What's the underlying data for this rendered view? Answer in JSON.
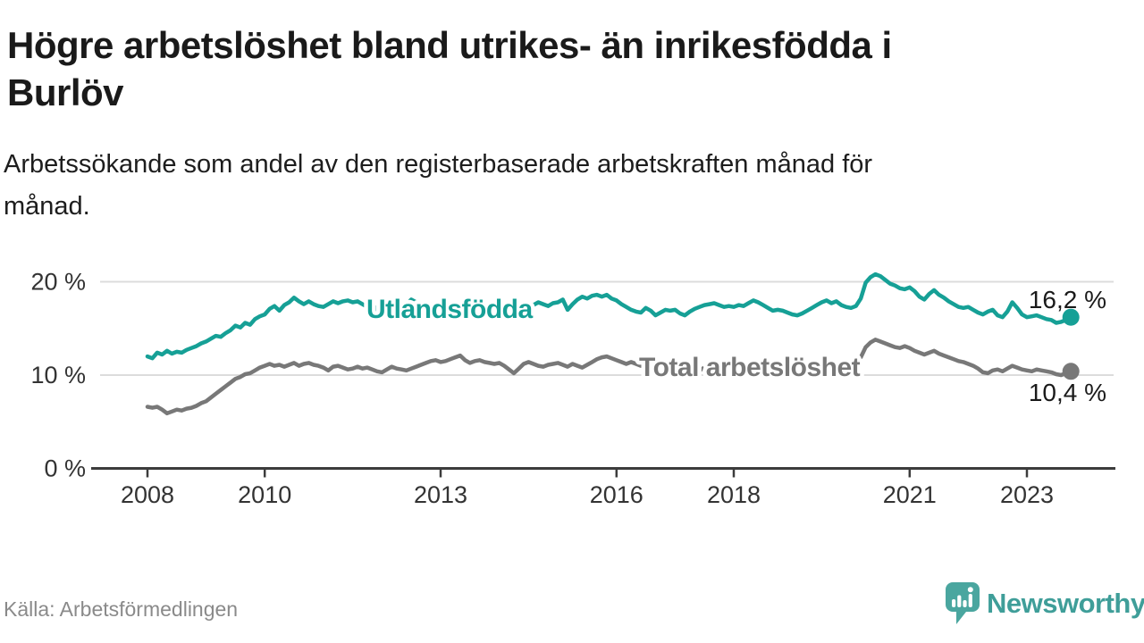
{
  "header": {
    "title_line1": "Högre arbetslöshet bland utrikes- än inrikesfödda i",
    "title_line2": "Burlöv",
    "subtitle_line1": "Arbetssökande som andel av den registerbaserade arbetskraften månad för",
    "subtitle_line2": "månad."
  },
  "footer": {
    "source": "Källa: Arbetsförmedlingen",
    "brand": "Newsworthy"
  },
  "colors": {
    "accent_teal": "#16a096",
    "series_gray": "#787878",
    "logo_teal": "#4aa69f",
    "grid": "#dcdcdc",
    "axis": "#3c3c3c",
    "text_dark": "#1a1a1a",
    "tick_text": "#333333"
  },
  "chart_data": {
    "type": "line",
    "unit": "%",
    "frequency": "monthly",
    "x_start": "2008-01",
    "x_end": "2023-10",
    "points_per_year": 12,
    "grid": "horizontal",
    "legend": "inline-labels",
    "ylim": [
      0,
      22
    ],
    "y_ticks": [
      {
        "value": 0,
        "label": "0 %"
      },
      {
        "value": 10,
        "label": "10 %"
      },
      {
        "value": 20,
        "label": "20 %"
      }
    ],
    "x_ticks": [
      {
        "year": 2008,
        "label": "2008"
      },
      {
        "year": 2010,
        "label": "2010"
      },
      {
        "year": 2013,
        "label": "2013"
      },
      {
        "year": 2016,
        "label": "2016"
      },
      {
        "year": 2018,
        "label": "2018"
      },
      {
        "year": 2021,
        "label": "2021"
      },
      {
        "year": 2023,
        "label": "2023"
      }
    ],
    "series": [
      {
        "name": "Utlandsfödda",
        "color": "#16a096",
        "end_value": 16.2,
        "end_label": "16,2 %",
        "values": [
          12.0,
          11.8,
          12.4,
          12.2,
          12.6,
          12.3,
          12.5,
          12.4,
          12.7,
          12.9,
          13.1,
          13.4,
          13.6,
          13.9,
          14.2,
          14.1,
          14.5,
          14.8,
          15.3,
          15.1,
          15.6,
          15.4,
          16.0,
          16.3,
          16.5,
          17.1,
          17.4,
          16.9,
          17.5,
          17.8,
          18.3,
          17.9,
          17.6,
          17.9,
          17.6,
          17.4,
          17.3,
          17.6,
          17.9,
          17.7,
          17.9,
          18.0,
          17.8,
          17.9,
          17.6,
          17.3,
          17.6,
          17.0,
          16.6,
          16.9,
          17.3,
          17.0,
          17.4,
          17.6,
          18.1,
          17.8,
          17.5,
          17.2,
          17.6,
          17.4,
          17.3,
          17.5,
          17.2,
          17.4,
          17.6,
          17.3,
          17.7,
          17.5,
          17.3,
          17.5,
          17.4,
          17.6,
          17.4,
          17.2,
          17.5,
          17.3,
          17.6,
          17.4,
          17.7,
          17.5,
          17.8,
          17.6,
          17.4,
          17.7,
          17.8,
          18.1,
          17.0,
          17.6,
          18.1,
          18.4,
          18.2,
          18.5,
          18.6,
          18.4,
          18.6,
          18.2,
          18.0,
          17.6,
          17.3,
          17.0,
          16.8,
          16.7,
          17.2,
          16.9,
          16.4,
          16.7,
          17.0,
          16.9,
          17.0,
          16.6,
          16.4,
          16.8,
          17.1,
          17.3,
          17.5,
          17.6,
          17.7,
          17.5,
          17.3,
          17.4,
          17.3,
          17.5,
          17.4,
          17.7,
          18.0,
          17.8,
          17.5,
          17.2,
          16.9,
          17.0,
          16.9,
          16.7,
          16.5,
          16.4,
          16.6,
          16.9,
          17.2,
          17.5,
          17.8,
          18.0,
          17.7,
          17.9,
          17.5,
          17.3,
          17.2,
          17.4,
          18.2,
          19.9,
          20.5,
          20.8,
          20.6,
          20.2,
          19.8,
          19.6,
          19.3,
          19.2,
          19.4,
          19.0,
          18.4,
          18.1,
          18.7,
          19.1,
          18.6,
          18.3,
          17.9,
          17.6,
          17.3,
          17.2,
          17.3,
          17.0,
          16.7,
          16.5,
          16.8,
          17.0,
          16.4,
          16.2,
          16.8,
          17.8,
          17.2,
          16.5,
          16.2,
          16.3,
          16.4,
          16.2,
          16.0,
          15.9,
          15.6,
          15.7,
          15.9,
          16.2
        ]
      },
      {
        "name": "Total arbetslöshet",
        "color": "#787878",
        "end_value": 10.4,
        "end_label": "10,4 %",
        "values": [
          6.6,
          6.5,
          6.6,
          6.3,
          5.9,
          6.1,
          6.3,
          6.2,
          6.4,
          6.5,
          6.7,
          7.0,
          7.2,
          7.6,
          8.0,
          8.4,
          8.8,
          9.2,
          9.6,
          9.8,
          10.1,
          10.2,
          10.5,
          10.8,
          11.0,
          11.2,
          11.0,
          11.1,
          10.9,
          11.1,
          11.3,
          11.0,
          11.2,
          11.3,
          11.1,
          11.0,
          10.8,
          10.5,
          10.9,
          11.0,
          10.8,
          10.6,
          10.7,
          10.9,
          10.7,
          10.8,
          10.6,
          10.4,
          10.3,
          10.6,
          10.9,
          10.7,
          10.6,
          10.5,
          10.7,
          10.9,
          11.1,
          11.3,
          11.5,
          11.6,
          11.4,
          11.5,
          11.7,
          11.9,
          12.1,
          11.6,
          11.3,
          11.5,
          11.6,
          11.4,
          11.3,
          11.2,
          11.3,
          11.0,
          10.6,
          10.2,
          10.7,
          11.2,
          11.4,
          11.2,
          11.0,
          10.9,
          11.1,
          11.2,
          11.3,
          11.1,
          10.9,
          11.2,
          11.0,
          10.8,
          11.1,
          11.4,
          11.7,
          11.9,
          12.0,
          11.8,
          11.6,
          11.4,
          11.2,
          11.4,
          11.2,
          11.0,
          11.3,
          11.1,
          10.9,
          11.1,
          11.0,
          10.9,
          10.8,
          10.7,
          10.6,
          10.8,
          10.7,
          10.5,
          10.8,
          10.6,
          10.5,
          10.7,
          10.6,
          10.5,
          10.6,
          10.5,
          10.4,
          10.3,
          10.5,
          10.4,
          10.2,
          10.4,
          10.3,
          10.2,
          10.3,
          10.4,
          10.3,
          10.2,
          10.4,
          10.3,
          10.5,
          10.4,
          10.6,
          10.5,
          10.4,
          10.6,
          10.5,
          10.7,
          10.8,
          11.0,
          11.9,
          13.0,
          13.5,
          13.8,
          13.6,
          13.4,
          13.2,
          13.0,
          12.9,
          13.1,
          12.9,
          12.6,
          12.4,
          12.2,
          12.4,
          12.6,
          12.3,
          12.1,
          11.9,
          11.7,
          11.5,
          11.4,
          11.2,
          11.0,
          10.7,
          10.3,
          10.2,
          10.5,
          10.6,
          10.4,
          10.7,
          11.0,
          10.8,
          10.6,
          10.5,
          10.4,
          10.6,
          10.5,
          10.4,
          10.3,
          10.1,
          10.0,
          10.2,
          10.4
        ]
      }
    ]
  }
}
